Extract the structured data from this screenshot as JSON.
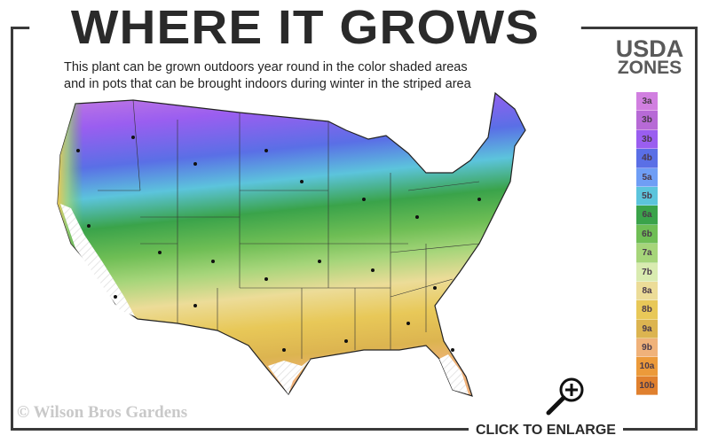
{
  "title": "WHERE IT GROWS",
  "subtitle_line1": "This plant can be grown outdoors year round in the color shaded areas",
  "subtitle_line2": "and in pots that can be brought indoors during winter in the striped area",
  "legend": {
    "title_line1": "USDA",
    "title_line2": "ZONES",
    "zones": [
      {
        "label": "3a",
        "color": "#d17fe0"
      },
      {
        "label": "3b",
        "color": "#b76ad6"
      },
      {
        "label": "3b",
        "color": "#9a5ef0"
      },
      {
        "label": "4b",
        "color": "#5a6fe6"
      },
      {
        "label": "5a",
        "color": "#6f9ef5"
      },
      {
        "label": "5b",
        "color": "#5cc4dc"
      },
      {
        "label": "6a",
        "color": "#3aa34a"
      },
      {
        "label": "6b",
        "color": "#6fbe55"
      },
      {
        "label": "7a",
        "color": "#a6d57a"
      },
      {
        "label": "7b",
        "color": "#d9ebb0"
      },
      {
        "label": "8a",
        "color": "#ecdc98"
      },
      {
        "label": "8b",
        "color": "#e8c858"
      },
      {
        "label": "9a",
        "color": "#dcb450"
      },
      {
        "label": "9b",
        "color": "#f0b27a"
      },
      {
        "label": "10a",
        "color": "#ec9a3a"
      },
      {
        "label": "10b",
        "color": "#e0802e"
      }
    ]
  },
  "copyright": "© Wilson Bros Gardens",
  "enlarge_label": "CLICK TO ENLARGE",
  "enlarge_icon": "zoom-in-magnifier-icon"
}
